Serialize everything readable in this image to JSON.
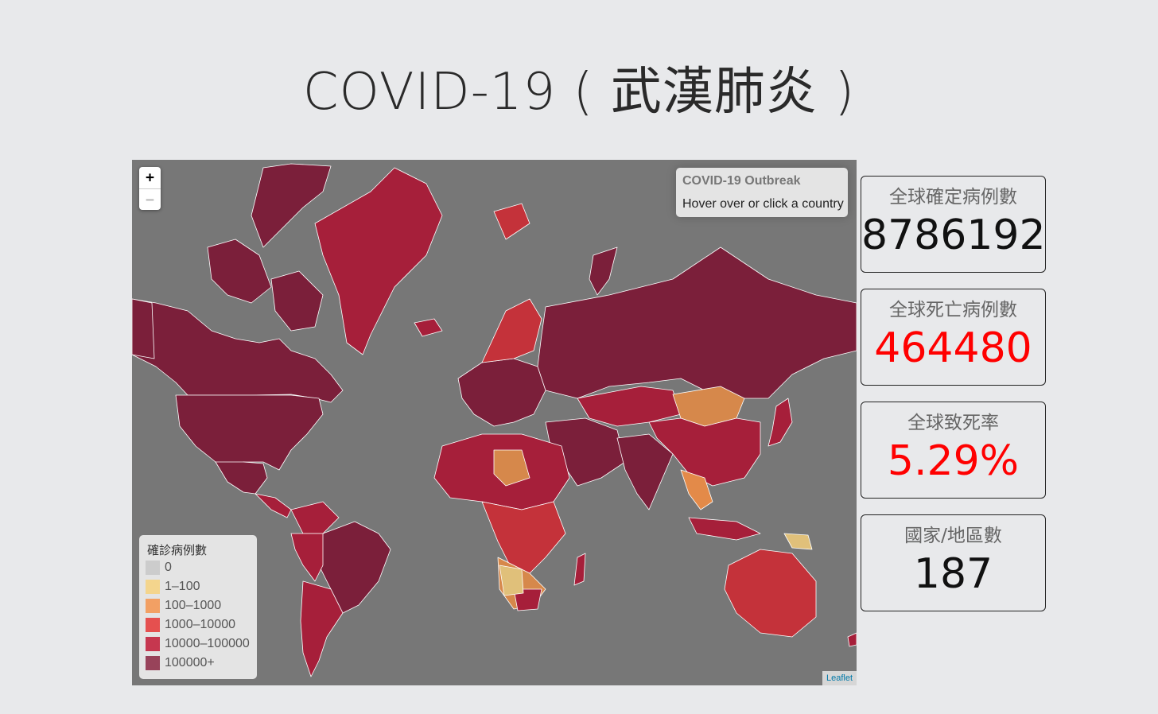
{
  "title": "COVID-19 ( 武漢肺炎 )",
  "map": {
    "zoom_in": "+",
    "zoom_out": "−",
    "info_title": "COVID-19 Outbreak",
    "info_hint": "Hover over or click a country",
    "attribution": "Leaflet",
    "colors": {
      "ocean": "#777777",
      "none": "#cccccc",
      "low": "#f0d68a",
      "mid": "#e38a49",
      "high": "#c4323a",
      "higher": "#a61f3a",
      "highest": "#7b1f3a"
    }
  },
  "legend": {
    "title": "確診病例數",
    "items": [
      {
        "label": "0",
        "color": "#cccccc"
      },
      {
        "label": "1–100",
        "color": "#f4d58d"
      },
      {
        "label": "100–1000",
        "color": "#f2a064"
      },
      {
        "label": "1000–10000",
        "color": "#e5504f"
      },
      {
        "label": "10000–100000",
        "color": "#c6374f"
      },
      {
        "label": "100000+",
        "color": "#98435a"
      }
    ]
  },
  "stats": {
    "confirmed_label": "全球確定病例數",
    "confirmed_value": "8786192",
    "deaths_label": "全球死亡病例數",
    "deaths_value": "464480",
    "fatality_label": "全球致死率",
    "fatality_value": "5.29%",
    "countries_label": "國家/地區數",
    "countries_value": "187"
  }
}
